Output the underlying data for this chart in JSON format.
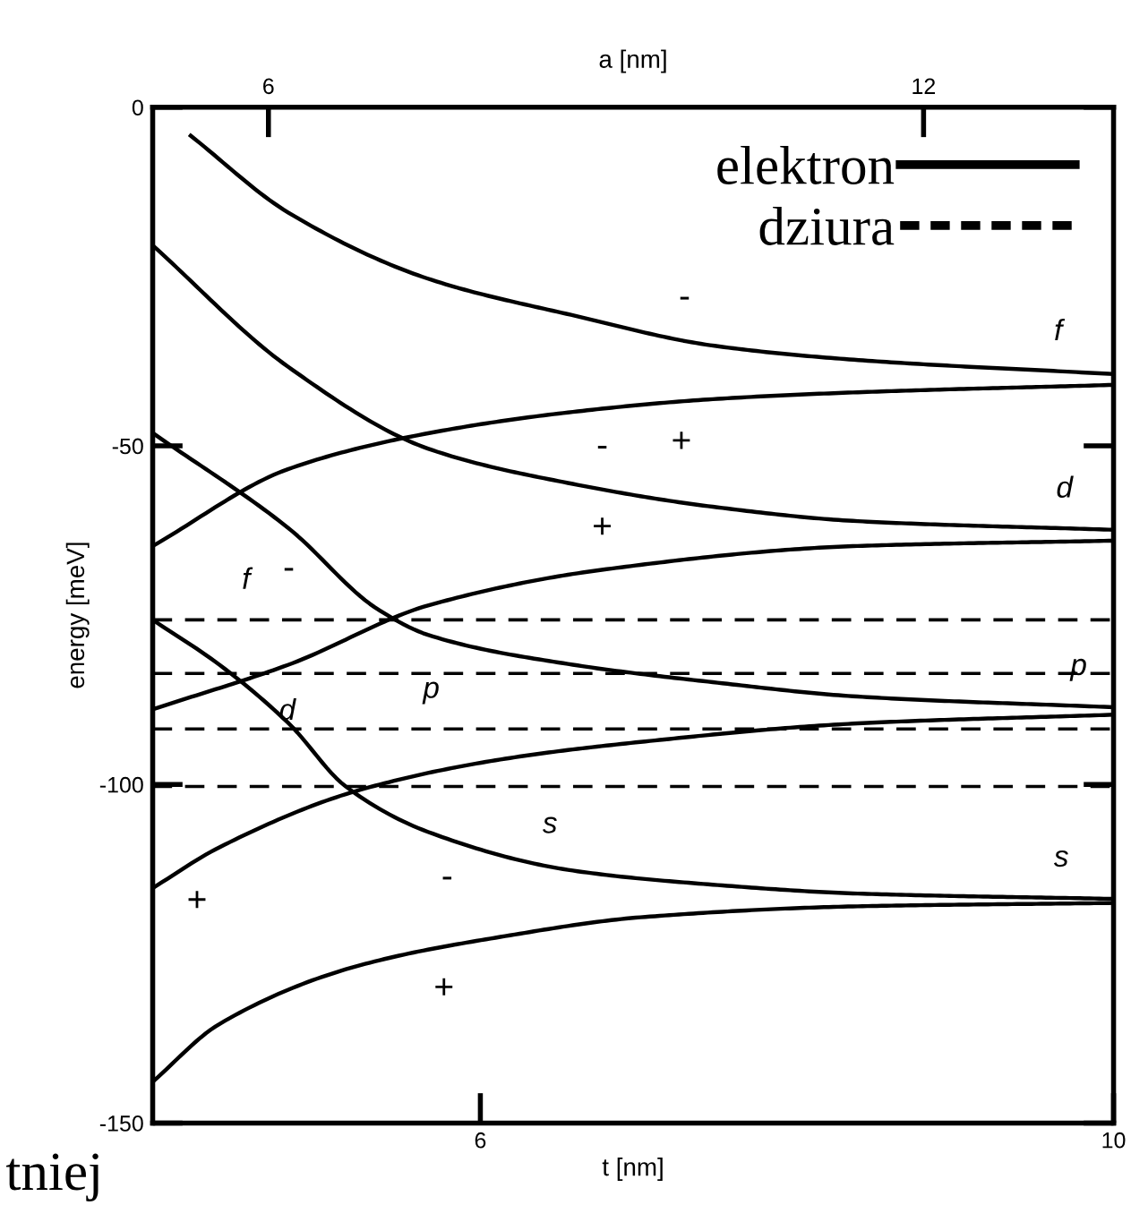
{
  "chart_data": {
    "type": "line",
    "xlabel": "t [nm]",
    "ylabel": "energy [meV]",
    "x2label": "a [nm]",
    "xlim": [
      3.93,
      10
    ],
    "xticks": [
      6,
      10
    ],
    "x2lim": [
      4.94,
      13.74
    ],
    "x2ticks": [
      6,
      12
    ],
    "ylim": [
      -150,
      0
    ],
    "yticks": [
      0,
      {
        "value": -50,
        "label": "-50"
      },
      {
        "value": -100,
        "label": "-100"
      },
      {
        "value": -150,
        "label": "-150"
      }
    ],
    "grid": false,
    "legend": "top right",
    "marker": "none",
    "series": [
      {
        "name": "elektron",
        "color": "#000000",
        "line_style": "solid",
        "x": [
          4.17,
          4.79,
          5.68,
          6.58,
          7.47,
          8.37,
          10.0
        ],
        "values": [
          -4.2,
          -15.6,
          -25.4,
          -30.7,
          -35.2,
          -37.3,
          -39.4
        ]
      },
      {
        "color": "#000000",
        "line_style": "solid",
        "x": [
          3.93,
          4.79,
          5.68,
          6.58,
          7.47,
          8.37,
          10.0
        ],
        "values": [
          -64.8,
          -53.4,
          -48.1,
          -45.0,
          -43.1,
          -42.1,
          -41.0
        ]
      },
      {
        "color": "#000000",
        "line_style": "solid",
        "x": [
          3.93,
          4.79,
          5.68,
          6.58,
          7.47,
          8.37,
          10.0
        ],
        "values": [
          -20.4,
          -38.4,
          -50.5,
          -55.6,
          -59.0,
          -61.1,
          -62.4
        ]
      },
      {
        "color": "#000000",
        "line_style": "solid",
        "x": [
          3.93,
          4.79,
          5.68,
          6.77,
          8.37,
          10.0
        ],
        "values": [
          -88.9,
          -82.3,
          -73.5,
          -68.3,
          -64.8,
          -64.0
        ]
      },
      {
        "color": "#000000",
        "line_style": "solid",
        "x": [
          3.93,
          4.79,
          5.35,
          5.68,
          6.58,
          7.47,
          8.37,
          10.0
        ],
        "values": [
          -48.1,
          -62.2,
          -74.1,
          -78.0,
          -82.3,
          -84.9,
          -87.0,
          -88.6
        ]
      },
      {
        "color": "#000000",
        "line_style": "solid",
        "x": [
          3.93,
          4.35,
          4.79,
          5.15,
          5.68,
          6.58,
          7.47,
          8.37,
          10.0
        ],
        "values": [
          -75.7,
          -82.3,
          -91.0,
          -100.3,
          -107.1,
          -112.7,
          -114.8,
          -116.1,
          -116.9
        ]
      },
      {
        "color": "#000000",
        "line_style": "solid",
        "x": [
          3.93,
          4.35,
          5.24,
          6.13,
          7.02,
          8.37,
          10.0
        ],
        "values": [
          -115.3,
          -109.3,
          -100.8,
          -96.3,
          -93.7,
          -91.0,
          -89.7
        ]
      },
      {
        "color": "#000000",
        "line_style": "solid",
        "x": [
          3.93,
          4.35,
          5.24,
          6.13,
          7.02,
          8.37,
          10.0
        ],
        "values": [
          -143.9,
          -135.4,
          -126.7,
          -122.5,
          -119.6,
          -118.0,
          -117.5
        ]
      },
      {
        "name": "dziura",
        "color": "#000000",
        "line_style": "dashed",
        "x": [
          3.93,
          10.0
        ],
        "values": [
          -75.7,
          -75.7
        ]
      },
      {
        "color": "#000000",
        "line_style": "dashed",
        "x": [
          3.93,
          10.0
        ],
        "values": [
          -83.6,
          -83.6
        ]
      },
      {
        "color": "#000000",
        "line_style": "dashed",
        "x": [
          3.93,
          10.0
        ],
        "values": [
          -91.8,
          -91.8
        ]
      },
      {
        "color": "#000000",
        "line_style": "dashed",
        "x": [
          3.93,
          10.0
        ],
        "values": [
          -100.3,
          -100.3
        ]
      }
    ],
    "annotations": [
      {
        "text": "-",
        "x": 7.29,
        "y": -34.3
      },
      {
        "text": "f",
        "x": 9.65,
        "y": -39.0
      },
      {
        "text": "+",
        "x": 7.27,
        "y": -43.5
      },
      {
        "text": "-",
        "x": 6.77,
        "y": -56.3
      },
      {
        "text": "d",
        "x": 9.69,
        "y": -62.2
      },
      {
        "text": "-",
        "x": 4.79,
        "y": -62.2
      },
      {
        "text": "+",
        "x": 6.77,
        "y": -68.3
      },
      {
        "text": "f",
        "x": 4.52,
        "y": -75.7
      },
      {
        "text": "d",
        "x": 4.78,
        "y": -83.6
      },
      {
        "text": "p",
        "x": 5.69,
        "y": -91.8
      },
      {
        "text": "p",
        "x": 9.78,
        "y": -88.4
      },
      {
        "text": "s",
        "x": 6.44,
        "y": -100.3
      },
      {
        "text": "s",
        "x": 9.67,
        "y": -116.7
      },
      {
        "text": "+",
        "x": 4.21,
        "y": -111.3
      },
      {
        "text": "-",
        "x": 5.79,
        "y": -107.8
      },
      {
        "text": "+",
        "x": 5.77,
        "y": -124.2
      },
      "tniej"
    ]
  }
}
